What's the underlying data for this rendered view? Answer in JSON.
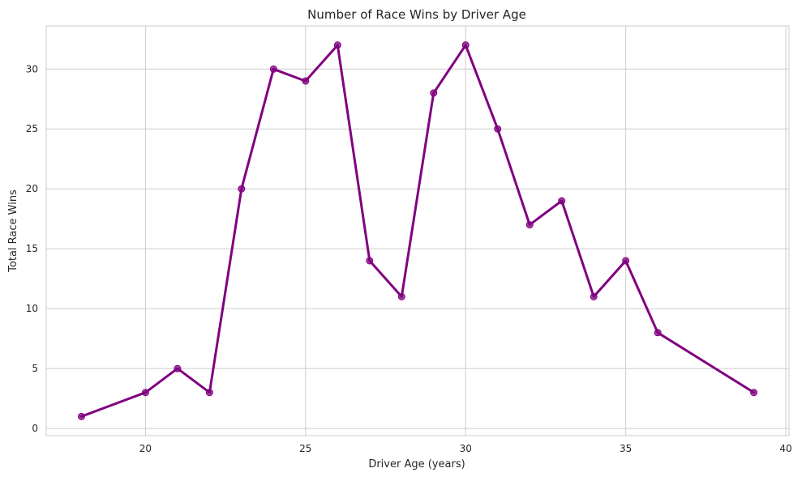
{
  "chart_data": {
    "type": "line",
    "title": "Number of Race Wins by Driver Age",
    "xlabel": "Driver Age (years)",
    "ylabel": "Total Race Wins",
    "xlim": [
      16.9,
      40.1
    ],
    "ylim": [
      -0.6,
      33.6
    ],
    "xticks": [
      20,
      25,
      30,
      35,
      40
    ],
    "yticks": [
      0,
      5,
      10,
      15,
      20,
      25,
      30
    ],
    "grid": true,
    "legend": "none",
    "series": [
      {
        "color": "#800080",
        "marker": "circle",
        "x": [
          18,
          20,
          21,
          22,
          23,
          24,
          25,
          26,
          27,
          28,
          29,
          30,
          31,
          32,
          33,
          34,
          35,
          36,
          39
        ],
        "y": [
          1,
          3,
          5,
          3,
          20,
          30,
          29,
          32,
          14,
          11,
          28,
          32,
          25,
          17,
          19,
          11,
          14,
          8,
          3
        ]
      }
    ]
  }
}
